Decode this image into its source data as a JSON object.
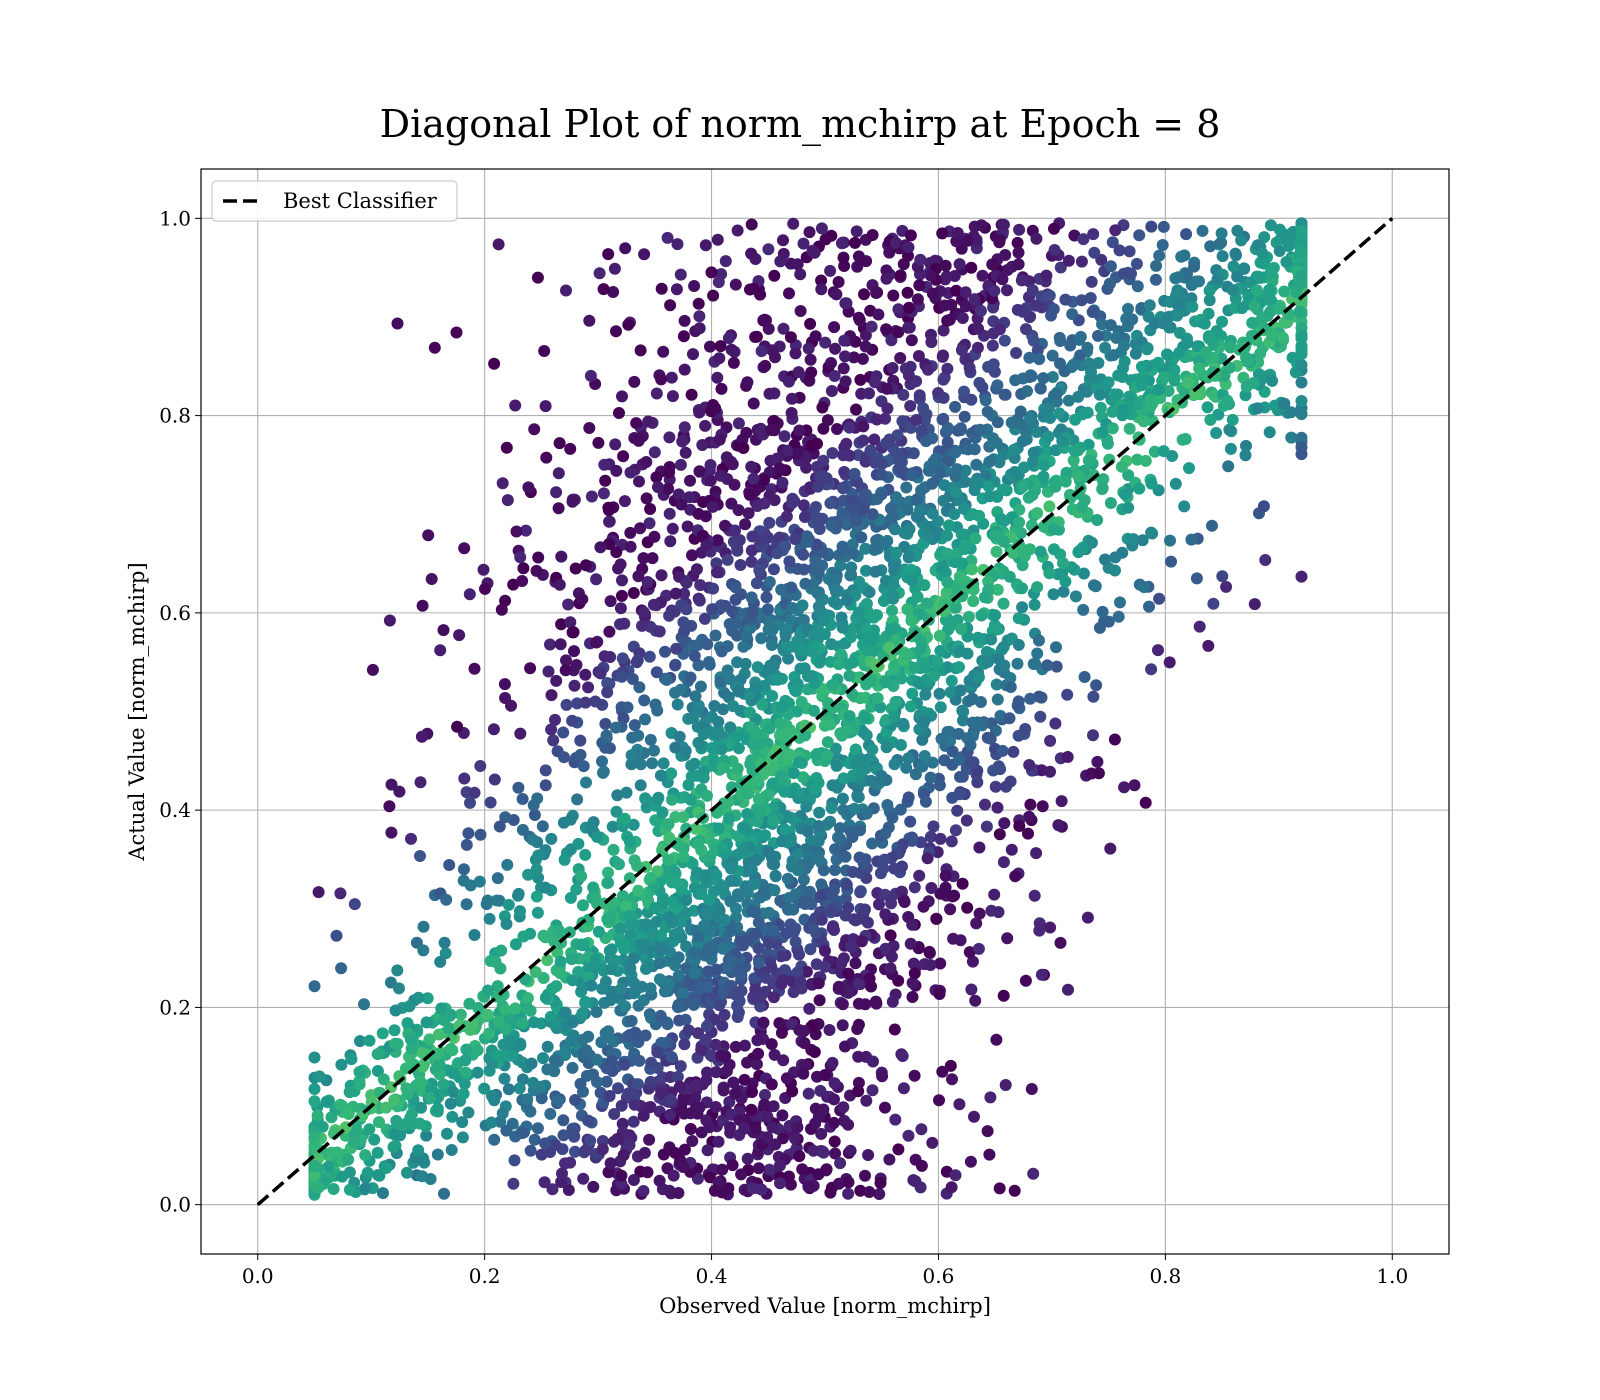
{
  "chart_data": {
    "type": "scatter",
    "title": "Diagonal Plot of norm_mchirp at Epoch = 8",
    "xlabel": "Observed Value [norm_mchirp]",
    "ylabel": "Actual Value [norm_mchirp]",
    "xlim": [
      -0.05,
      1.05
    ],
    "ylim": [
      -0.05,
      1.05
    ],
    "xticks": [
      0.0,
      0.2,
      0.4,
      0.6,
      0.8,
      1.0
    ],
    "yticks": [
      0.0,
      0.2,
      0.4,
      0.6,
      0.8,
      1.0
    ],
    "xtick_labels": [
      "0.0",
      "0.2",
      "0.4",
      "0.6",
      "0.8",
      "1.0"
    ],
    "ytick_labels": [
      "0.0",
      "0.2",
      "0.4",
      "0.6",
      "0.8",
      "1.0"
    ],
    "grid": true,
    "colormap": "viridis",
    "legend": {
      "placement": "top-left",
      "entries": [
        "Best Classifier"
      ]
    },
    "reference_line": {
      "name": "Best Classifier",
      "style": "dashed",
      "color": "#000000",
      "x": [
        0.0,
        1.0
      ],
      "y": [
        0.0,
        1.0
      ]
    },
    "point_clusters": [
      {
        "actual_range": [
          0.0,
          0.2
        ],
        "observed_center_at_bottom": 0.42,
        "observed_center_at_top": 0.35,
        "observed_spread": 0.11
      },
      {
        "actual_range": [
          0.2,
          0.4
        ],
        "observed_center_at_bottom": 0.38,
        "observed_center_at_top": 0.45,
        "observed_spread": 0.12
      },
      {
        "actual_range": [
          0.4,
          0.6
        ],
        "observed_center_at_bottom": 0.45,
        "observed_center_at_top": 0.52,
        "observed_spread": 0.12
      },
      {
        "actual_range": [
          0.6,
          0.8
        ],
        "observed_center_at_bottom": 0.5,
        "observed_center_at_top": 0.6,
        "observed_spread": 0.14
      },
      {
        "actual_range": [
          0.8,
          1.0
        ],
        "observed_center_at_bottom": 0.62,
        "observed_center_at_top": 0.62,
        "observed_spread": 0.16
      }
    ]
  }
}
